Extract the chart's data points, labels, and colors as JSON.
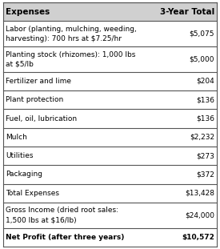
{
  "header": [
    "Expenses",
    "3-Year Total"
  ],
  "rows": [
    [
      "Labor (planting, mulching, weeding,\nharvesting): 700 hrs at $7.25/hr",
      "$5,075"
    ],
    [
      "Planting stock (rhizomes): 1,000 lbs\nat $5/lb",
      "$5,000"
    ],
    [
      "Fertilizer and lime",
      "$204"
    ],
    [
      "Plant protection",
      "$136"
    ],
    [
      "Fuel, oil, lubrication",
      "$136"
    ],
    [
      "Mulch",
      "$2,232"
    ],
    [
      "Utilities",
      "$273"
    ],
    [
      "Packaging",
      "$372"
    ],
    [
      "Total Expenses",
      "$13,428"
    ],
    [
      "Gross Income (dried root sales:\n1,500 lbs at $16/lb)",
      "$24,000"
    ],
    [
      "Net Profit (after three years)",
      "$10,572"
    ]
  ],
  "bold_rows": [
    10
  ],
  "header_bg": "#d0d0d0",
  "row_bg": "#ffffff",
  "border_color": "#555555",
  "text_color": "#000000",
  "font_size": 6.5,
  "header_font_size": 7.5,
  "col_split": 0.72
}
